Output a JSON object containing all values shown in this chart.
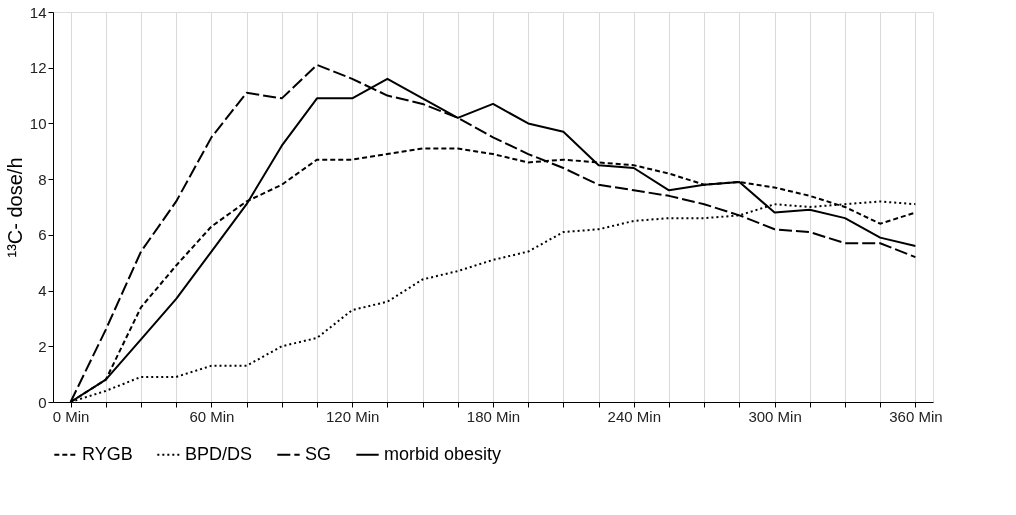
{
  "chart_data": {
    "type": "line",
    "ylabel": "¹³C- dose/h",
    "x": [
      0,
      15,
      30,
      45,
      60,
      75,
      90,
      105,
      120,
      135,
      150,
      165,
      180,
      195,
      210,
      225,
      240,
      255,
      270,
      285,
      300,
      315,
      330,
      345,
      360
    ],
    "xlim": [
      -7.5,
      367.5
    ],
    "xticks": [
      {
        "value": 0,
        "label": "0 Min"
      },
      {
        "value": 15,
        "label": null
      },
      {
        "value": 30,
        "label": null
      },
      {
        "value": 45,
        "label": null
      },
      {
        "value": 60,
        "label": "60 Min"
      },
      {
        "value": 75,
        "label": null
      },
      {
        "value": 90,
        "label": null
      },
      {
        "value": 105,
        "label": null
      },
      {
        "value": 120,
        "label": "120 Min"
      },
      {
        "value": 135,
        "label": null
      },
      {
        "value": 150,
        "label": null
      },
      {
        "value": 165,
        "label": null
      },
      {
        "value": 180,
        "label": "180 Min"
      },
      {
        "value": 195,
        "label": null
      },
      {
        "value": 210,
        "label": null
      },
      {
        "value": 225,
        "label": null
      },
      {
        "value": 240,
        "label": "240 Min"
      },
      {
        "value": 255,
        "label": null
      },
      {
        "value": 270,
        "label": null
      },
      {
        "value": 285,
        "label": null
      },
      {
        "value": 300,
        "label": "300 Min"
      },
      {
        "value": 315,
        "label": null
      },
      {
        "value": 330,
        "label": null
      },
      {
        "value": 345,
        "label": null
      },
      {
        "value": 360,
        "label": "360 Min"
      }
    ],
    "ylim": [
      0,
      14
    ],
    "yticks": [
      0,
      2,
      4,
      6,
      8,
      10,
      12,
      14
    ],
    "grid": "x",
    "legend": "bottom",
    "series": [
      {
        "name": "RYGB",
        "color": "#000000",
        "line_style": "dashed",
        "values": [
          0,
          0.8,
          3.4,
          4.9,
          6.3,
          7.2,
          7.8,
          8.7,
          8.7,
          8.9,
          9.1,
          9.1,
          8.9,
          8.6,
          8.7,
          8.6,
          8.5,
          8.2,
          7.8,
          7.9,
          7.7,
          7.4,
          7.0,
          6.4,
          6.8
        ]
      },
      {
        "name": "BPD/DS",
        "color": "#000000",
        "line_style": "dotted",
        "values": [
          0,
          0.4,
          0.9,
          0.9,
          1.3,
          1.3,
          2.0,
          2.3,
          3.3,
          3.6,
          4.4,
          4.7,
          5.1,
          5.4,
          6.1,
          6.2,
          6.5,
          6.6,
          6.6,
          6.7,
          7.1,
          7.0,
          7.1,
          7.2,
          7.1
        ]
      },
      {
        "name": "SG",
        "color": "#000000",
        "line_style": "dashed",
        "values": [
          0,
          2.6,
          5.4,
          7.2,
          9.5,
          11.1,
          10.9,
          12.1,
          11.6,
          11.0,
          10.7,
          10.2,
          9.5,
          8.9,
          8.4,
          7.8,
          7.6,
          7.4,
          7.1,
          6.7,
          6.2,
          6.1,
          5.7,
          5.7,
          5.2
        ]
      },
      {
        "name": "morbid obesity",
        "color": "#000000",
        "line_style": "solid",
        "values": [
          0,
          0.8,
          2.25,
          3.7,
          5.4,
          7.1,
          9.2,
          10.9,
          10.9,
          11.6,
          10.9,
          10.2,
          10.7,
          10.0,
          9.7,
          8.5,
          8.4,
          7.6,
          7.8,
          7.9,
          6.8,
          6.9,
          6.6,
          5.9,
          5.6
        ]
      }
    ]
  }
}
